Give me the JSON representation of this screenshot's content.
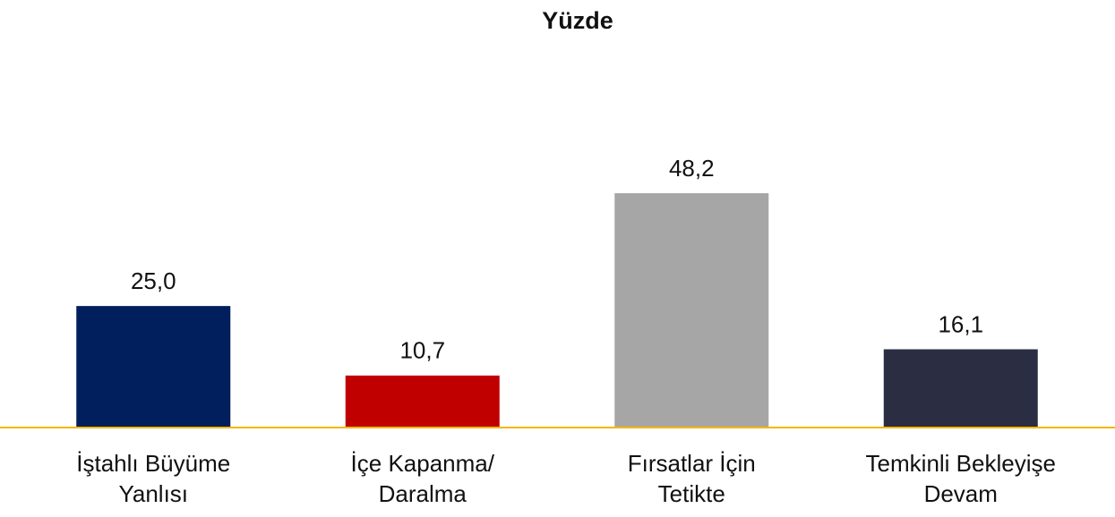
{
  "chart_data": {
    "type": "bar",
    "title": "Yüzde",
    "categories": [
      [
        "İştahlı Büyüme",
        "Yanlısı"
      ],
      [
        "İçe Kapanma/",
        "Daralma"
      ],
      [
        "Fırsatlar İçin",
        "Tetikte"
      ],
      [
        "Temkinli Bekleyişe",
        "Devam"
      ]
    ],
    "values": [
      25.0,
      10.7,
      48.2,
      16.1
    ],
    "value_labels": [
      "25,0",
      "10,7",
      "48,2",
      "16,1"
    ],
    "colors": [
      "#001f5c",
      "#c00000",
      "#a6a6a6",
      "#2b2d42"
    ],
    "baseline_color": "#f2b800"
  }
}
